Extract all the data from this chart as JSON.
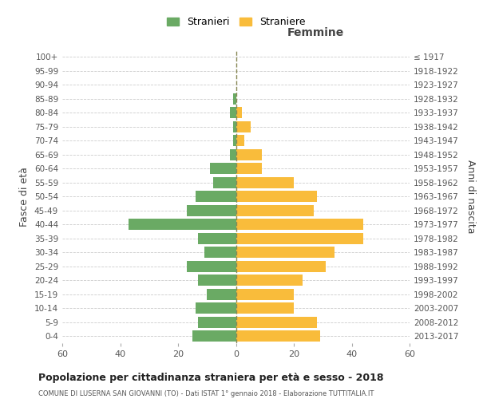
{
  "age_groups": [
    "0-4",
    "5-9",
    "10-14",
    "15-19",
    "20-24",
    "25-29",
    "30-34",
    "35-39",
    "40-44",
    "45-49",
    "50-54",
    "55-59",
    "60-64",
    "65-69",
    "70-74",
    "75-79",
    "80-84",
    "85-89",
    "90-94",
    "95-99",
    "100+"
  ],
  "birth_years": [
    "2013-2017",
    "2008-2012",
    "2003-2007",
    "1998-2002",
    "1993-1997",
    "1988-1992",
    "1983-1987",
    "1978-1982",
    "1973-1977",
    "1968-1972",
    "1963-1967",
    "1958-1962",
    "1953-1957",
    "1948-1952",
    "1943-1947",
    "1938-1942",
    "1933-1937",
    "1928-1932",
    "1923-1927",
    "1918-1922",
    "≤ 1917"
  ],
  "males": [
    15,
    13,
    14,
    10,
    13,
    17,
    11,
    13,
    37,
    17,
    14,
    8,
    9,
    2,
    1,
    1,
    2,
    1,
    0,
    0,
    0
  ],
  "females": [
    29,
    28,
    20,
    20,
    23,
    31,
    34,
    44,
    44,
    27,
    28,
    20,
    9,
    9,
    3,
    5,
    2,
    0,
    0,
    0,
    0
  ],
  "male_color": "#6aaa64",
  "female_color": "#f9bc3b",
  "title": "Popolazione per cittadinanza straniera per età e sesso - 2018",
  "subtitle": "COMUNE DI LUSERNA SAN GIOVANNI (TO) - Dati ISTAT 1° gennaio 2018 - Elaborazione TUTTITALIA.IT",
  "xlabel_right": "Femmine",
  "ylabel_left": "Fasce di età",
  "ylabel_right": "Anni di nascita",
  "legend_male": "Stranieri",
  "legend_female": "Straniere",
  "xlim": 60,
  "background_color": "#ffffff",
  "grid_color": "#cccccc"
}
